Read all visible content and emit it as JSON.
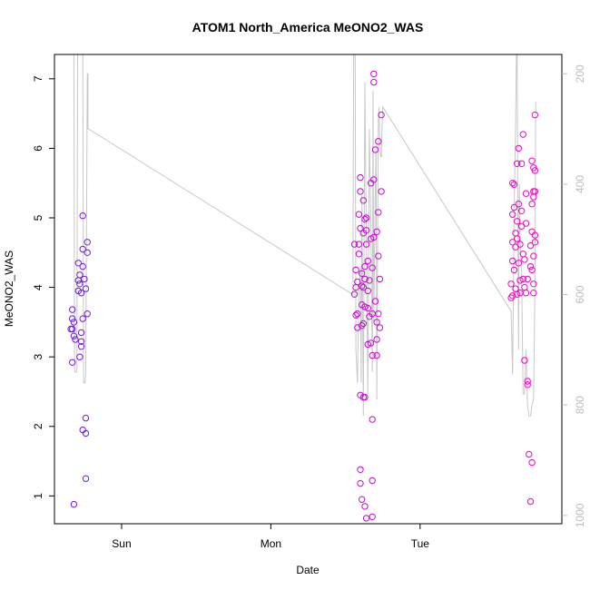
{
  "chart_data": {
    "type": "scatter",
    "title": "ATOM1 North_America MeONO2_WAS",
    "xlabel": "Date",
    "ylabel": "MeONO2_WAS",
    "x_ticks": [
      "Sun",
      "Mon",
      "Tue"
    ],
    "x_tick_days": [
      1,
      2,
      3
    ],
    "xlim": [
      0.55,
      3.95
    ],
    "ylim": [
      0.6,
      7.35
    ],
    "y_ticks": [
      1,
      2,
      3,
      4,
      5,
      6,
      7
    ],
    "y2_ticks": [
      200,
      400,
      600,
      800,
      1000
    ],
    "y2lim": [
      1015,
      165
    ],
    "y2_reversed": true,
    "grid": false,
    "colors": {
      "axis": "#000000",
      "line": "#c8c8c8",
      "y2_axis": "#bdbdbd"
    },
    "series": [
      {
        "kind": "scatter",
        "color_from": "#6a1be6",
        "color_to": "#ff00c8",
        "points": [
          [
            0.68,
            0.88
          ],
          [
            0.67,
            2.92
          ],
          [
            0.67,
            3.4
          ],
          [
            0.68,
            3.5
          ],
          [
            0.67,
            3.55
          ],
          [
            0.66,
            3.4
          ],
          [
            0.67,
            3.68
          ],
          [
            0.68,
            3.3
          ],
          [
            0.69,
            3.25
          ],
          [
            0.71,
            3.95
          ],
          [
            0.71,
            4.1
          ],
          [
            0.72,
            4.18
          ],
          [
            0.71,
            4.35
          ],
          [
            0.72,
            4.05
          ],
          [
            0.73,
            3.92
          ],
          [
            0.72,
            3.0
          ],
          [
            0.73,
            3.35
          ],
          [
            0.73,
            3.15
          ],
          [
            0.74,
            3.55
          ],
          [
            0.73,
            3.22
          ],
          [
            0.74,
            4.3
          ],
          [
            0.74,
            4.55
          ],
          [
            0.74,
            5.03
          ],
          [
            0.75,
            4.12
          ],
          [
            0.74,
            1.95
          ],
          [
            0.76,
            1.9
          ],
          [
            0.76,
            2.12
          ],
          [
            0.76,
            1.25
          ],
          [
            0.77,
            3.62
          ],
          [
            0.76,
            3.98
          ],
          [
            0.77,
            4.5
          ],
          [
            0.77,
            4.65
          ],
          [
            2.56,
            4.62
          ],
          [
            2.56,
            3.9
          ],
          [
            2.57,
            3.6
          ],
          [
            2.57,
            4.0
          ],
          [
            2.58,
            4.08
          ],
          [
            2.57,
            4.25
          ],
          [
            2.58,
            3.42
          ],
          [
            2.58,
            3.62
          ],
          [
            2.59,
            4.48
          ],
          [
            2.59,
            4.62
          ],
          [
            2.6,
            4.85
          ],
          [
            2.59,
            5.05
          ],
          [
            2.6,
            5.38
          ],
          [
            2.6,
            5.58
          ],
          [
            2.61,
            4.02
          ],
          [
            2.61,
            4.2
          ],
          [
            2.61,
            3.45
          ],
          [
            2.62,
            3.48
          ],
          [
            2.61,
            3.75
          ],
          [
            2.62,
            4.0
          ],
          [
            2.62,
            4.78
          ],
          [
            2.63,
            4.98
          ],
          [
            2.62,
            5.25
          ],
          [
            2.63,
            4.3
          ],
          [
            2.63,
            3.72
          ],
          [
            2.63,
            4.12
          ],
          [
            2.64,
            4.62
          ],
          [
            2.64,
            4.82
          ],
          [
            2.64,
            5.0
          ],
          [
            2.65,
            3.95
          ],
          [
            2.65,
            3.7
          ],
          [
            2.65,
            4.38
          ],
          [
            2.65,
            3.18
          ],
          [
            2.66,
            3.58
          ],
          [
            2.66,
            4.1
          ],
          [
            2.67,
            4.7
          ],
          [
            2.67,
            5.5
          ],
          [
            2.67,
            3.2
          ],
          [
            2.68,
            3.02
          ],
          [
            2.68,
            3.62
          ],
          [
            2.68,
            4.28
          ],
          [
            2.69,
            4.72
          ],
          [
            2.69,
            5.55
          ],
          [
            2.69,
            6.95
          ],
          [
            2.69,
            7.07
          ],
          [
            2.7,
            5.98
          ],
          [
            2.7,
            3.8
          ],
          [
            2.71,
            3.25
          ],
          [
            2.71,
            3.5
          ],
          [
            2.71,
            3.02
          ],
          [
            2.72,
            4.45
          ],
          [
            2.71,
            4.8
          ],
          [
            2.72,
            5.08
          ],
          [
            2.72,
            6.1
          ],
          [
            2.73,
            4.12
          ],
          [
            2.73,
            3.42
          ],
          [
            2.72,
            3.62
          ],
          [
            2.74,
            6.48
          ],
          [
            2.74,
            5.38
          ],
          [
            2.6,
            2.45
          ],
          [
            2.62,
            2.42
          ],
          [
            2.63,
            2.42
          ],
          [
            2.68,
            2.1
          ],
          [
            2.6,
            1.38
          ],
          [
            2.6,
            1.18
          ],
          [
            2.61,
            0.95
          ],
          [
            2.63,
            0.85
          ],
          [
            2.64,
            0.68
          ],
          [
            2.68,
            0.7
          ],
          [
            2.68,
            1.22
          ],
          [
            3.61,
            3.85
          ],
          [
            3.62,
            3.88
          ],
          [
            3.61,
            4.05
          ],
          [
            3.62,
            4.38
          ],
          [
            3.62,
            4.65
          ],
          [
            3.62,
            5.05
          ],
          [
            3.63,
            5.15
          ],
          [
            3.62,
            5.5
          ],
          [
            3.63,
            5.48
          ],
          [
            3.63,
            4.25
          ],
          [
            3.64,
            4.58
          ],
          [
            3.64,
            3.98
          ],
          [
            3.64,
            4.78
          ],
          [
            3.65,
            3.9
          ],
          [
            3.65,
            4.7
          ],
          [
            3.65,
            4.95
          ],
          [
            3.66,
            5.2
          ],
          [
            3.65,
            5.78
          ],
          [
            3.66,
            6.0
          ],
          [
            3.66,
            4.35
          ],
          [
            3.67,
            4.62
          ],
          [
            3.67,
            4.1
          ],
          [
            3.67,
            3.92
          ],
          [
            3.68,
            4.88
          ],
          [
            3.68,
            5.1
          ],
          [
            3.68,
            5.78
          ],
          [
            3.69,
            6.2
          ],
          [
            3.69,
            4.12
          ],
          [
            3.69,
            4.48
          ],
          [
            3.7,
            4.4
          ],
          [
            3.7,
            4.0
          ],
          [
            3.71,
            4.92
          ],
          [
            3.71,
            5.35
          ],
          [
            3.72,
            4.12
          ],
          [
            3.71,
            3.92
          ],
          [
            3.7,
            2.95
          ],
          [
            3.72,
            2.65
          ],
          [
            3.72,
            2.6
          ],
          [
            3.73,
            1.6
          ],
          [
            3.74,
            0.92
          ],
          [
            3.75,
            1.48
          ],
          [
            3.74,
            4.3
          ],
          [
            3.74,
            4.6
          ],
          [
            3.75,
            4.8
          ],
          [
            3.75,
            4.25
          ],
          [
            3.76,
            4.45
          ],
          [
            3.75,
            5.2
          ],
          [
            3.76,
            5.3
          ],
          [
            3.76,
            5.38
          ],
          [
            3.76,
            5.72
          ],
          [
            3.75,
            5.82
          ],
          [
            3.77,
            5.38
          ],
          [
            3.77,
            5.68
          ],
          [
            3.77,
            6.48
          ],
          [
            3.76,
            3.92
          ],
          [
            3.77,
            4.75
          ],
          [
            3.76,
            4.05
          ],
          [
            3.77,
            4.65
          ]
        ]
      },
      {
        "kind": "line",
        "axis": "y2",
        "points": [
          [
            0.68,
            165
          ],
          [
            0.685,
            740
          ],
          [
            0.7,
            740
          ],
          [
            0.705,
            165
          ],
          [
            0.72,
            165
          ],
          [
            0.73,
            165
          ],
          [
            0.74,
            165
          ],
          [
            0.745,
            760
          ],
          [
            0.755,
            760
          ],
          [
            0.76,
            740
          ],
          [
            0.77,
            200
          ],
          [
            0.775,
            200
          ],
          [
            0.775,
            300
          ],
          [
            0.78,
            300
          ],
          [
            2.55,
            600
          ],
          [
            2.555,
            165
          ],
          [
            2.565,
            165
          ],
          [
            2.57,
            700
          ],
          [
            2.58,
            760
          ],
          [
            2.59,
            600
          ],
          [
            2.6,
            550
          ],
          [
            2.605,
            760
          ],
          [
            2.61,
            420
          ],
          [
            2.62,
            820
          ],
          [
            2.63,
            215
          ],
          [
            2.64,
            500
          ],
          [
            2.65,
            780
          ],
          [
            2.66,
            300
          ],
          [
            2.67,
            470
          ],
          [
            2.68,
            740
          ],
          [
            2.685,
            230
          ],
          [
            2.69,
            650
          ],
          [
            2.7,
            400
          ],
          [
            2.705,
            330
          ],
          [
            2.71,
            790
          ],
          [
            2.72,
            280
          ],
          [
            2.725,
            260
          ],
          [
            2.73,
            320
          ],
          [
            2.735,
            350
          ],
          [
            2.74,
            350
          ],
          [
            2.745,
            300
          ],
          [
            2.75,
            260
          ],
          [
            3.61,
            630
          ],
          [
            3.62,
            745
          ],
          [
            3.625,
            600
          ],
          [
            3.63,
            450
          ],
          [
            3.64,
            300
          ],
          [
            3.645,
            165
          ],
          [
            3.65,
            165
          ],
          [
            3.655,
            460
          ],
          [
            3.66,
            700
          ],
          [
            3.665,
            400
          ],
          [
            3.67,
            500
          ],
          [
            3.68,
            560
          ],
          [
            3.685,
            660
          ],
          [
            3.69,
            780
          ],
          [
            3.7,
            780
          ],
          [
            3.71,
            700
          ],
          [
            3.72,
            800
          ],
          [
            3.73,
            820
          ],
          [
            3.74,
            820
          ],
          [
            3.75,
            800
          ],
          [
            3.76,
            790
          ],
          [
            3.77,
            580
          ],
          [
            3.775,
            250
          ]
        ]
      }
    ]
  }
}
